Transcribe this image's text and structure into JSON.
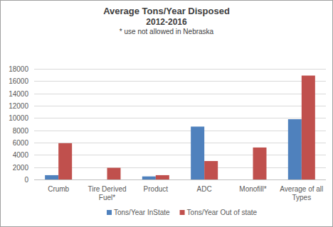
{
  "chart_data": {
    "type": "bar",
    "title": "Average Tons/Year Disposed",
    "subtitle": "2012-2016",
    "annotation": "* use not allowed in Nebraska",
    "categories": [
      "Crumb",
      "Tire Derived Fuel*",
      "Product",
      "ADC",
      "Monofill*",
      "Average of all Types"
    ],
    "series": [
      {
        "name": "Tons/Year InState",
        "color": "#4f81bd",
        "values": [
          700,
          0,
          500,
          8600,
          0,
          9800
        ]
      },
      {
        "name": "Tons/Year Out of state",
        "color": "#c0504d",
        "values": [
          5900,
          1900,
          700,
          3000,
          5200,
          16900
        ]
      }
    ],
    "ylim": [
      0,
      18000
    ],
    "yticks": [
      0,
      2000,
      4000,
      6000,
      8000,
      10000,
      12000,
      14000,
      16000,
      18000
    ],
    "grid": true,
    "legend": "bottom"
  }
}
